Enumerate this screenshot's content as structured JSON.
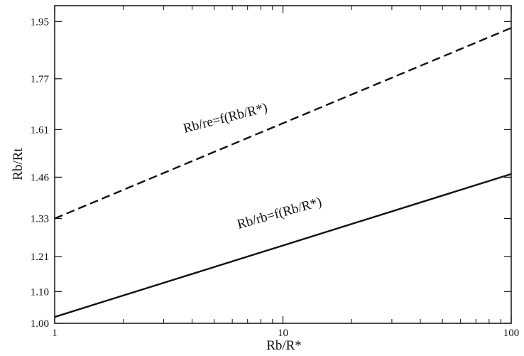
{
  "chart_data": {
    "type": "line",
    "xlabel": "Rb/R*",
    "ylabel": "Rb/Rt",
    "x_scale": "log",
    "xlim": [
      1,
      100
    ],
    "ylim": [
      1.0,
      2.0
    ],
    "x_ticks": [
      1,
      10,
      100
    ],
    "x_tick_labels": [
      "1",
      "10",
      "100"
    ],
    "y_ticks": [
      1.0,
      1.1,
      1.21,
      1.33,
      1.46,
      1.61,
      1.77,
      1.95
    ],
    "y_tick_labels": [
      "1.00",
      "1.10",
      "1.21",
      "1.33",
      "1.46",
      "1.61",
      "1.77",
      "1.95"
    ],
    "grid": false,
    "series": [
      {
        "label": "Rb/re=f(Rb/R*)",
        "style": "dashed",
        "x": [
          1,
          100
        ],
        "y": [
          1.33,
          1.93
        ]
      },
      {
        "label": "Rb/rb=f(Rb/R*)",
        "style": "solid",
        "x": [
          1,
          100
        ],
        "y": [
          1.02,
          1.47
        ]
      }
    ],
    "colors": {
      "line": "#111111",
      "axis": "#111111"
    }
  }
}
